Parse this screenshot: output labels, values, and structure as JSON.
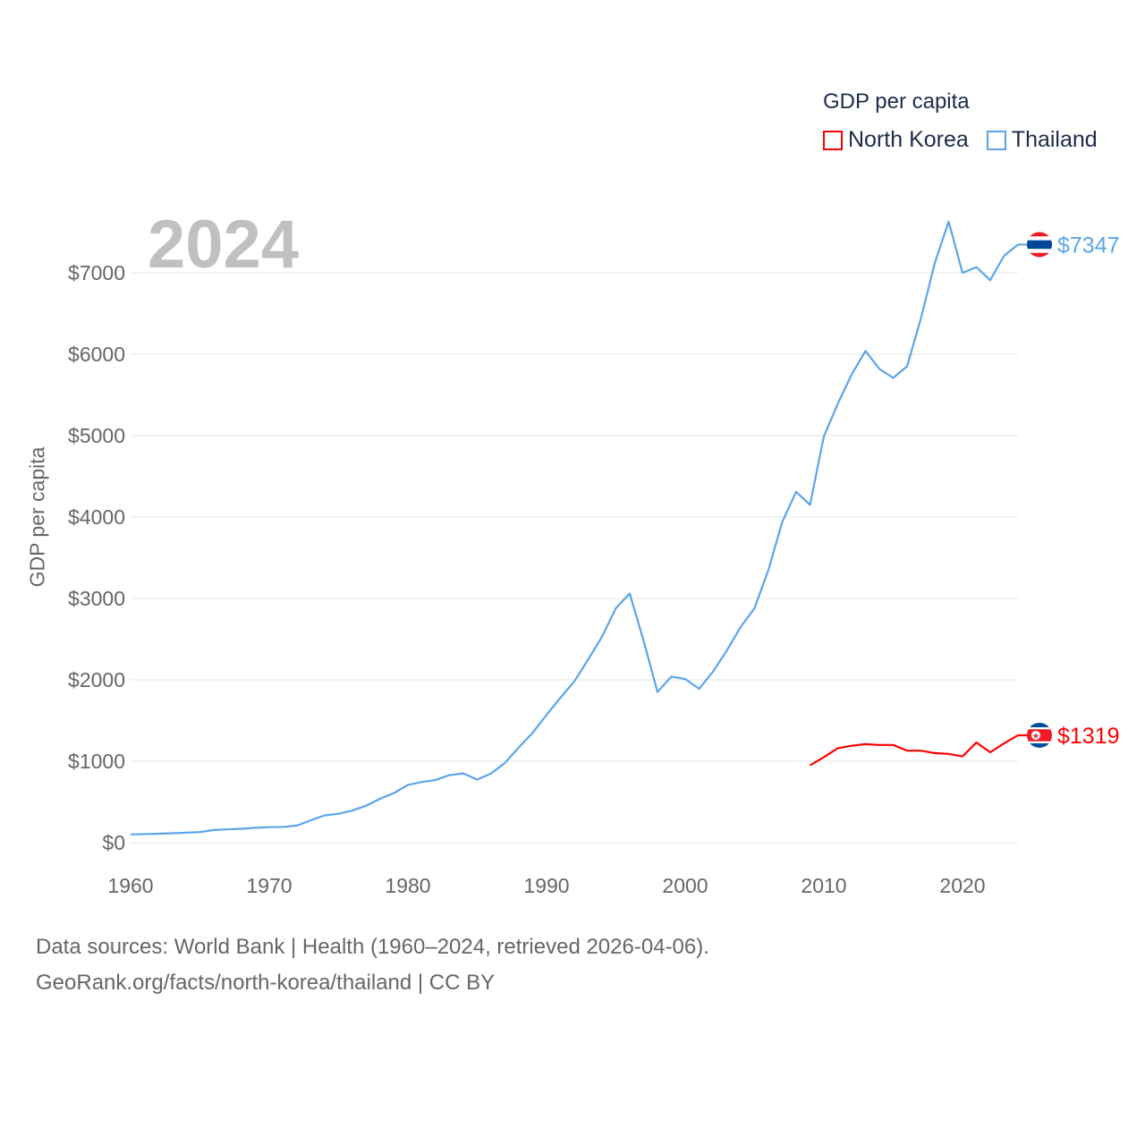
{
  "chart_data": {
    "type": "line",
    "title": "GDP per capita",
    "year_label": "2024",
    "xlabel": "",
    "ylabel": "GDP per capita",
    "xlim": [
      1960,
      2024
    ],
    "ylim": [
      0,
      7700
    ],
    "x_ticks": [
      1960,
      1970,
      1980,
      1990,
      2000,
      2010,
      2020
    ],
    "x_tick_labels": [
      "1960",
      "1970",
      "1980",
      "1990",
      "2000",
      "2010",
      "2020"
    ],
    "y_ticks": [
      0,
      1000,
      2000,
      3000,
      4000,
      5000,
      6000,
      7000
    ],
    "y_tick_labels": [
      "$0",
      "$1000",
      "$2000",
      "$3000",
      "$4000",
      "$5000",
      "$6000",
      "$7000"
    ],
    "grid": true,
    "legend_position": "top-right",
    "series": [
      {
        "name": "North Korea",
        "color": "#ff0000",
        "end_label": "$1319",
        "flag": "north-korea-flag",
        "start_year": 2009,
        "values": [
          950,
          1050,
          1160,
          1190,
          1210,
          1200,
          1200,
          1130,
          1130,
          1100,
          1090,
          1060,
          1230,
          1110,
          1220,
          1319
        ]
      },
      {
        "name": "Thailand",
        "color": "#5aa5ea",
        "end_label": "$7347",
        "flag": "thailand-flag",
        "start_year": 1960,
        "values": [
          101,
          105,
          110,
          115,
          122,
          130,
          155,
          163,
          170,
          183,
          190,
          193,
          210,
          275,
          335,
          355,
          395,
          455,
          540,
          610,
          710,
          745,
          770,
          830,
          850,
          775,
          850,
          980,
          1170,
          1350,
          1570,
          1780,
          1980,
          2250,
          2530,
          2880,
          3060,
          2480,
          1850,
          2040,
          2010,
          1890,
          2100,
          2360,
          2650,
          2880,
          3350,
          3940,
          4310,
          4150,
          4990,
          5390,
          5750,
          6040,
          5820,
          5710,
          5850,
          6440,
          7120,
          7630,
          7000,
          7070,
          6910,
          7210,
          7347
        ]
      }
    ]
  },
  "footer": {
    "sources": "Data sources: World Bank | Health (1960–2024, retrieved 2026-04-06).",
    "url": "GeoRank.org/facts/north-korea/thailand | CC BY"
  }
}
